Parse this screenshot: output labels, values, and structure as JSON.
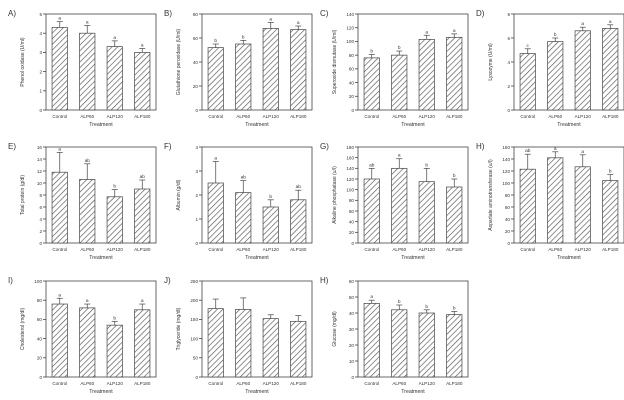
{
  "figure": {
    "colors": {
      "bar_fill": "#ffffff",
      "hatch": "#555555",
      "axis": "#444444",
      "text": "#333333"
    },
    "treatment_label": "Treatment"
  },
  "chart_data": [
    {
      "panel": "A)",
      "type": "bar",
      "ylabel": "Phenol oxidase (U/ml)",
      "xlabel": "Treatment",
      "categories": [
        "Control",
        "ALP60",
        "ALP120",
        "ALP180"
      ],
      "values": [
        4.3,
        4.0,
        3.3,
        3.0
      ],
      "errors": [
        0.3,
        0.4,
        0.3,
        0.2
      ],
      "letters": [
        "a",
        "a",
        "a",
        "a"
      ],
      "ylim": [
        0,
        5
      ],
      "yticks": [
        0,
        1,
        2,
        3,
        4,
        5
      ],
      "ytick_labels": [
        "0",
        "1",
        "2",
        "3",
        "4",
        "5"
      ]
    },
    {
      "panel": "B)",
      "type": "bar",
      "ylabel": "Glutathione peroxidase (U/ml)",
      "xlabel": "Treatment",
      "categories": [
        "Control",
        "ALP60",
        "ALP120",
        "ALP180"
      ],
      "values": [
        52,
        55,
        68,
        67
      ],
      "errors": [
        3,
        3,
        5,
        3
      ],
      "letters": [
        "b",
        "b",
        "a",
        "a"
      ],
      "ylim": [
        0,
        80
      ],
      "yticks": [
        0,
        20,
        40,
        60,
        80
      ],
      "ytick_labels": [
        "0",
        "20",
        "40",
        "60",
        "80"
      ]
    },
    {
      "panel": "C)",
      "type": "bar",
      "ylabel": "Superoxide dismutase (U/ml)",
      "xlabel": "Treatment",
      "categories": [
        "Control",
        "ALP60",
        "ALP120",
        "ALP180"
      ],
      "values": [
        76,
        80,
        103,
        106
      ],
      "errors": [
        5,
        6,
        6,
        5
      ],
      "letters": [
        "b",
        "b",
        "a",
        "a"
      ],
      "ylim": [
        0,
        140
      ],
      "yticks": [
        0,
        20,
        40,
        60,
        80,
        100,
        120,
        140
      ],
      "ytick_labels": [
        "0",
        "20",
        "40",
        "60",
        "80",
        "100",
        "120",
        "140"
      ]
    },
    {
      "panel": "D)",
      "type": "bar",
      "ylabel": "Lysozyme (U/ml)",
      "xlabel": "Treatment",
      "categories": [
        "Control",
        "ALP60",
        "ALP120",
        "ALP180"
      ],
      "values": [
        4.7,
        5.7,
        6.6,
        6.8
      ],
      "errors": [
        0.4,
        0.3,
        0.3,
        0.3
      ],
      "letters": [
        "c",
        "b",
        "a",
        "a"
      ],
      "ylim": [
        0,
        8
      ],
      "yticks": [
        0,
        2,
        4,
        6,
        8
      ],
      "ytick_labels": [
        "0",
        "2",
        "4",
        "6",
        "8"
      ]
    },
    {
      "panel": "E)",
      "type": "bar",
      "ylabel": "Total protein (g/dl)",
      "xlabel": "Treatment",
      "categories": [
        "Control",
        "ALP60",
        "ALP120",
        "ALP180"
      ],
      "values": [
        11.8,
        10.6,
        7.7,
        9.0
      ],
      "errors": [
        3.3,
        2.6,
        1.2,
        1.5
      ],
      "letters": [
        "a",
        "ab",
        "b",
        "ab"
      ],
      "ylim": [
        0,
        16
      ],
      "yticks": [
        0,
        2,
        4,
        6,
        8,
        10,
        12,
        14,
        16
      ],
      "ytick_labels": [
        "0",
        "2",
        "4",
        "6",
        "8",
        "10",
        "12",
        "14",
        "16"
      ]
    },
    {
      "panel": "F)",
      "type": "bar",
      "ylabel": "Albumin (g/dl)",
      "xlabel": "Treatment",
      "categories": [
        "Control",
        "ALP60",
        "ALP120",
        "ALP180"
      ],
      "values": [
        2.5,
        2.1,
        1.5,
        1.8
      ],
      "errors": [
        0.9,
        0.5,
        0.3,
        0.4
      ],
      "letters": [
        "a",
        "ab",
        "b",
        "ab"
      ],
      "ylim": [
        0,
        4
      ],
      "yticks": [
        0,
        1,
        2,
        3,
        4
      ],
      "ytick_labels": [
        "0",
        "1",
        "2",
        "3",
        "4"
      ]
    },
    {
      "panel": "G)",
      "type": "bar",
      "ylabel": "Alkaline phosphatase (u/l)",
      "xlabel": "Treatment",
      "categories": [
        "Control",
        "ALP60",
        "ALP120",
        "ALP180"
      ],
      "values": [
        120,
        140,
        115,
        105
      ],
      "errors": [
        20,
        18,
        25,
        15
      ],
      "letters": [
        "ab",
        "a",
        "b",
        "b"
      ],
      "ylim": [
        0,
        180
      ],
      "yticks": [
        0,
        20,
        40,
        60,
        80,
        100,
        120,
        140,
        160,
        180
      ],
      "ytick_labels": [
        "0",
        "20",
        "40",
        "60",
        "80",
        "100",
        "120",
        "140",
        "160",
        "180"
      ]
    },
    {
      "panel": "H)",
      "type": "bar",
      "ylabel": "Aspartate aminotransferase (u/l)",
      "xlabel": "Treatment",
      "categories": [
        "Control",
        "ALP60",
        "ALP120",
        "ALP180"
      ],
      "values": [
        123,
        142,
        127,
        104
      ],
      "errors": [
        25,
        10,
        20,
        10
      ],
      "letters": [
        "ab",
        "a",
        "a",
        "b"
      ],
      "ylim": [
        0,
        160
      ],
      "yticks": [
        0,
        20,
        40,
        60,
        80,
        100,
        120,
        140,
        160
      ],
      "ytick_labels": [
        "0",
        "20",
        "40",
        "60",
        "80",
        "100",
        "120",
        "140",
        "160"
      ]
    },
    {
      "panel": "I)",
      "type": "bar",
      "ylabel": "Cholesterol (mg/dl)",
      "xlabel": "Treatment",
      "categories": [
        "Control",
        "ALP60",
        "ALP120",
        "ALP180"
      ],
      "values": [
        76,
        72,
        54,
        70
      ],
      "errors": [
        6,
        4,
        4,
        6
      ],
      "letters": [
        "a",
        "a",
        "b",
        "a"
      ],
      "ylim": [
        0,
        100
      ],
      "yticks": [
        0,
        20,
        40,
        60,
        80,
        100
      ],
      "ytick_labels": [
        "0",
        "20",
        "40",
        "60",
        "80",
        "100"
      ]
    },
    {
      "panel": "J)",
      "type": "bar",
      "ylabel": "Triglyceride (mg/dl)",
      "xlabel": "Treatment",
      "categories": [
        "Control",
        "ALP60",
        "ALP120",
        "ALP180"
      ],
      "values": [
        178,
        176,
        152,
        145
      ],
      "errors": [
        25,
        30,
        10,
        15
      ],
      "letters": [
        "",
        "",
        "",
        ""
      ],
      "ylim": [
        0,
        250
      ],
      "yticks": [
        0,
        50,
        100,
        150,
        200,
        250
      ],
      "ytick_labels": [
        "0",
        "50",
        "100",
        "150",
        "200",
        "250"
      ]
    },
    {
      "panel": "H)",
      "type": "bar",
      "ylabel": "Glucose (mg/dl)",
      "xlabel": "Treatment",
      "categories": [
        "Control",
        "ALP60",
        "ALP120",
        "ALP180"
      ],
      "values": [
        46,
        42,
        40,
        39
      ],
      "errors": [
        2,
        3,
        2,
        2
      ],
      "letters": [
        "a",
        "b",
        "b",
        "b"
      ],
      "ylim": [
        0,
        60
      ],
      "yticks": [
        0,
        10,
        20,
        30,
        40,
        50,
        60
      ],
      "ytick_labels": [
        "0",
        "10",
        "20",
        "30",
        "40",
        "50",
        "60"
      ]
    }
  ]
}
